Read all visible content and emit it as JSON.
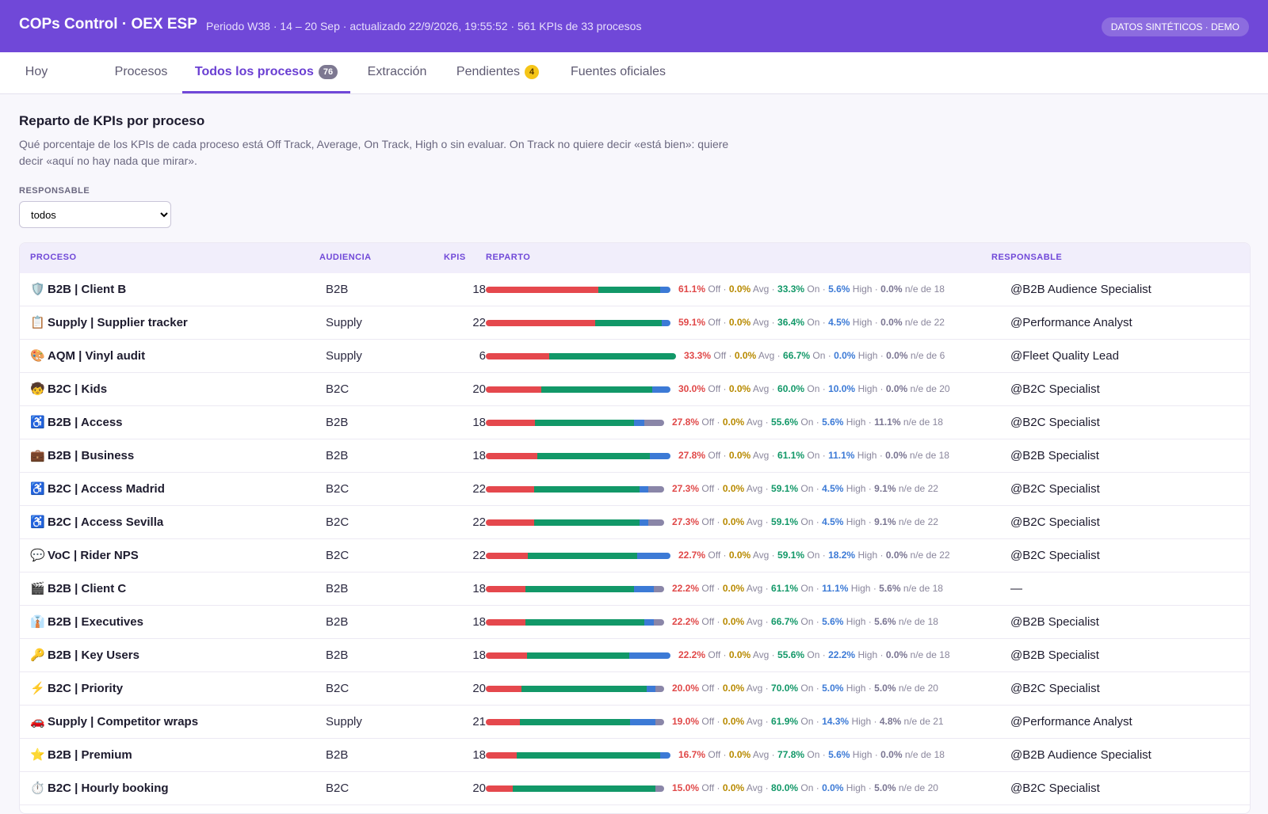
{
  "header": {
    "title": "COPs Control · OEX ESP",
    "meta": "Periodo W38 · 14 – 20 Sep · actualizado 22/9/2026, 19:55:52 · 561 KPIs de 33 procesos",
    "badge": "DATOS SINTÉTICOS · DEMO"
  },
  "tabs": [
    {
      "label": "Hoy",
      "count": ""
    },
    {
      "label": "Procesos",
      "count": ""
    },
    {
      "label": "Todos los procesos",
      "count": "76",
      "active": true
    },
    {
      "label": "Extracción",
      "count": ""
    },
    {
      "label": "Pendientes",
      "count": "4"
    },
    {
      "label": "Fuentes oficiales",
      "count": ""
    }
  ],
  "section": {
    "title": "Reparto de KPIs por proceso",
    "description": "Qué porcentaje de los KPIs de cada proceso está Off Track, Average, On Track, High o sin evaluar. On Track no quiere decir «está bien»: quiere decir «aquí no hay nada que mirar».",
    "filter_label": "RESPONSABLE",
    "filter_value": "todos"
  },
  "table": {
    "headers": {
      "process": "PROCESO",
      "audience": "AUDIENCIA",
      "kpis": "KPIS",
      "split": "REPARTO",
      "owner": "RESPONSABLE"
    },
    "labels": {
      "off": "Off",
      "avg": "Avg",
      "on": "On",
      "high": "High",
      "na": "n/e",
      "of": "de"
    },
    "colors": {
      "off": "#e5484d",
      "avg": "#e8b100",
      "on": "#129868",
      "high": "#3c7ad6",
      "na": "#8a86a8"
    },
    "rows": [
      {
        "icon": "🛡️",
        "icon_name": "shield-icon",
        "name": "B2B | Client B",
        "audience": "B2B",
        "kpis": "18",
        "off": "61.1%",
        "avg": "0.0%",
        "on": "33.3%",
        "high": "5.6%",
        "na": "0.0%",
        "owner": "@B2B Audience Specialist"
      },
      {
        "icon": "📋",
        "icon_name": "clipboard-icon",
        "name": "Supply | Supplier tracker",
        "audience": "Supply",
        "kpis": "22",
        "off": "59.1%",
        "avg": "0.0%",
        "on": "36.4%",
        "high": "4.5%",
        "na": "0.0%",
        "owner": "@Performance Analyst"
      },
      {
        "icon": "🎨",
        "icon_name": "palette-icon",
        "name": "AQM | Vinyl audit",
        "audience": "Supply",
        "kpis": "6",
        "off": "33.3%",
        "avg": "0.0%",
        "on": "66.7%",
        "high": "0.0%",
        "na": "0.0%",
        "owner": "@Fleet Quality Lead"
      },
      {
        "icon": "🧒",
        "icon_name": "child-icon",
        "name": "B2C | Kids",
        "audience": "B2C",
        "kpis": "20",
        "off": "30.0%",
        "avg": "0.0%",
        "on": "60.0%",
        "high": "10.0%",
        "na": "0.0%",
        "owner": "@B2C Specialist"
      },
      {
        "icon": "♿",
        "icon_name": "wheelchair-icon",
        "name": "B2B | Access",
        "audience": "B2B",
        "kpis": "18",
        "off": "27.8%",
        "avg": "0.0%",
        "on": "55.6%",
        "high": "5.6%",
        "na": "11.1%",
        "owner": "@B2C Specialist"
      },
      {
        "icon": "💼",
        "icon_name": "briefcase-icon",
        "name": "B2B | Business",
        "audience": "B2B",
        "kpis": "18",
        "off": "27.8%",
        "avg": "0.0%",
        "on": "61.1%",
        "high": "11.1%",
        "na": "0.0%",
        "owner": "@B2B Specialist"
      },
      {
        "icon": "♿",
        "icon_name": "wheelchair-icon",
        "name": "B2C | Access Madrid",
        "audience": "B2C",
        "kpis": "22",
        "off": "27.3%",
        "avg": "0.0%",
        "on": "59.1%",
        "high": "4.5%",
        "na": "9.1%",
        "owner": "@B2C Specialist"
      },
      {
        "icon": "♿",
        "icon_name": "wheelchair-icon",
        "name": "B2C | Access Sevilla",
        "audience": "B2C",
        "kpis": "22",
        "off": "27.3%",
        "avg": "0.0%",
        "on": "59.1%",
        "high": "4.5%",
        "na": "9.1%",
        "owner": "@B2C Specialist"
      },
      {
        "icon": "💬",
        "icon_name": "speech-bubble-icon",
        "name": "VoC | Rider NPS",
        "audience": "B2C",
        "kpis": "22",
        "off": "22.7%",
        "avg": "0.0%",
        "on": "59.1%",
        "high": "18.2%",
        "na": "0.0%",
        "owner": "@B2C Specialist"
      },
      {
        "icon": "🎬",
        "icon_name": "clapperboard-icon",
        "name": "B2B | Client C",
        "audience": "B2B",
        "kpis": "18",
        "off": "22.2%",
        "avg": "0.0%",
        "on": "61.1%",
        "high": "11.1%",
        "na": "5.6%",
        "owner": "—"
      },
      {
        "icon": "👔",
        "icon_name": "necktie-icon",
        "name": "B2B | Executives",
        "audience": "B2B",
        "kpis": "18",
        "off": "22.2%",
        "avg": "0.0%",
        "on": "66.7%",
        "high": "5.6%",
        "na": "5.6%",
        "owner": "@B2B Specialist"
      },
      {
        "icon": "🔑",
        "icon_name": "key-icon",
        "name": "B2B | Key Users",
        "audience": "B2B",
        "kpis": "18",
        "off": "22.2%",
        "avg": "0.0%",
        "on": "55.6%",
        "high": "22.2%",
        "na": "0.0%",
        "owner": "@B2B Specialist"
      },
      {
        "icon": "⚡",
        "icon_name": "lightning-icon",
        "name": "B2C | Priority",
        "audience": "B2C",
        "kpis": "20",
        "off": "20.0%",
        "avg": "0.0%",
        "on": "70.0%",
        "high": "5.0%",
        "na": "5.0%",
        "owner": "@B2C Specialist"
      },
      {
        "icon": "🚗",
        "icon_name": "car-icon",
        "name": "Supply | Competitor wraps",
        "audience": "Supply",
        "kpis": "21",
        "off": "19.0%",
        "avg": "0.0%",
        "on": "61.9%",
        "high": "14.3%",
        "na": "4.8%",
        "owner": "@Performance Analyst"
      },
      {
        "icon": "⭐",
        "icon_name": "star-icon",
        "name": "B2B | Premium",
        "audience": "B2B",
        "kpis": "18",
        "off": "16.7%",
        "avg": "0.0%",
        "on": "77.8%",
        "high": "5.6%",
        "na": "0.0%",
        "owner": "@B2B Audience Specialist"
      },
      {
        "icon": "⏱️",
        "icon_name": "stopwatch-icon",
        "name": "B2C | Hourly booking",
        "audience": "B2C",
        "kpis": "20",
        "off": "15.0%",
        "avg": "0.0%",
        "on": "80.0%",
        "high": "0.0%",
        "na": "5.0%",
        "owner": "@B2C Specialist"
      }
    ]
  }
}
